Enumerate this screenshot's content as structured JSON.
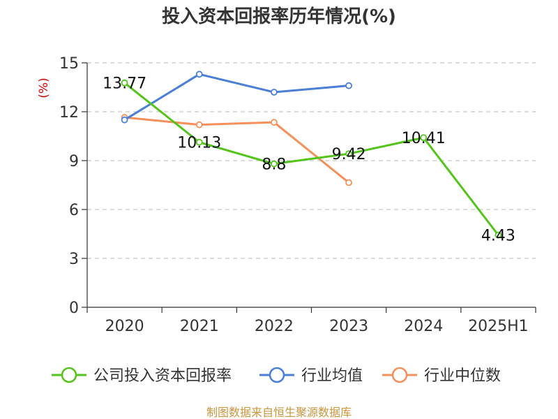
{
  "chart_data": {
    "type": "line",
    "title": "投入资本回报率历年情况(%)",
    "ylabel": "(%)",
    "xlabel": "",
    "categories": [
      "2020",
      "2021",
      "2022",
      "2023",
      "2024",
      "2025H1"
    ],
    "ylim": [
      0,
      15
    ],
    "yticks": [
      0,
      3,
      6,
      9,
      12,
      15
    ],
    "grid": true,
    "legend_position": "bottom",
    "series": [
      {
        "name": "公司投入资本回报率",
        "color": "#52c41a",
        "values": [
          13.77,
          10.13,
          8.8,
          9.42,
          10.41,
          4.43
        ],
        "labels": [
          "13.77",
          "10.13",
          "8.8",
          "9.42",
          "10.41",
          "4.43"
        ]
      },
      {
        "name": "行业均值",
        "color": "#4a7fd8",
        "values": [
          11.5,
          14.3,
          13.2,
          13.6,
          null,
          null
        ]
      },
      {
        "name": "行业中位数",
        "color": "#f4905a",
        "values": [
          11.65,
          11.2,
          11.35,
          7.65,
          null,
          null
        ]
      }
    ]
  },
  "source": "制图数据来自恒生聚源数据库"
}
